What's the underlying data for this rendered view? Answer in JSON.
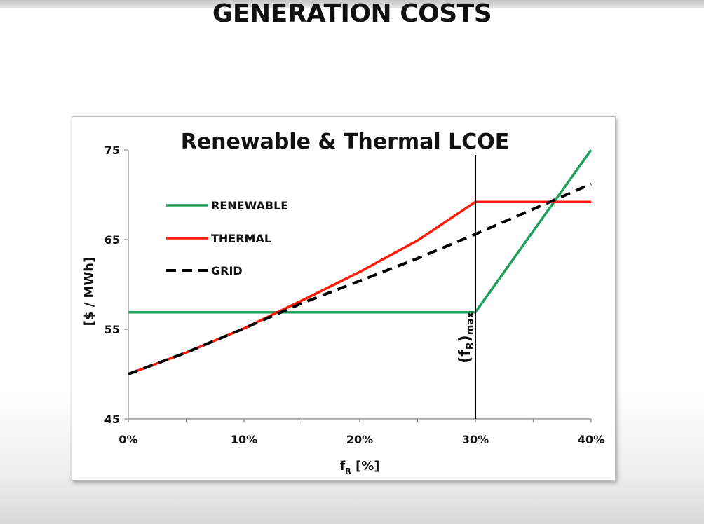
{
  "slide": {
    "title": "GENERATION COSTS"
  },
  "chart_data": {
    "type": "line",
    "title": "Renewable & Thermal LCOE",
    "xlabel_main": "f",
    "xlabel_sub": "R",
    "xlabel_unit": " [%]",
    "ylabel": "[$ / MWh]",
    "xlim": [
      0,
      40
    ],
    "ylim": [
      45,
      75
    ],
    "xticks": [
      0,
      10,
      20,
      30,
      40
    ],
    "xtick_labels": [
      "0%",
      "10%",
      "20%",
      "30%",
      "40%"
    ],
    "yticks": [
      45,
      55,
      65,
      75
    ],
    "ytick_labels": [
      "45",
      "55",
      "65",
      "75"
    ],
    "grid": false,
    "legend_position": "upper-left",
    "series": [
      {
        "name": "RENEWABLE",
        "color": "#1fa05a",
        "dash": "solid",
        "x": [
          0,
          30,
          40
        ],
        "y": [
          56.9,
          56.9,
          75
        ]
      },
      {
        "name": "THERMAL",
        "color": "#ff1a0a",
        "dash": "solid",
        "x": [
          0,
          5,
          10,
          15,
          20,
          25,
          30,
          40
        ],
        "y": [
          50,
          52.4,
          55.1,
          58.2,
          61.4,
          64.9,
          69.2,
          69.2
        ]
      },
      {
        "name": "GRID",
        "color": "#000000",
        "dash": "dashed",
        "x": [
          0,
          5,
          10,
          15,
          20,
          25,
          30,
          35,
          40
        ],
        "y": [
          50,
          52.4,
          55.1,
          57.9,
          60.4,
          62.9,
          65.6,
          68.4,
          71.2
        ]
      }
    ],
    "vline": {
      "x": 30,
      "label_main": "(f",
      "label_sub": "R",
      "label_close": ")",
      "label_sub2": "max"
    }
  }
}
